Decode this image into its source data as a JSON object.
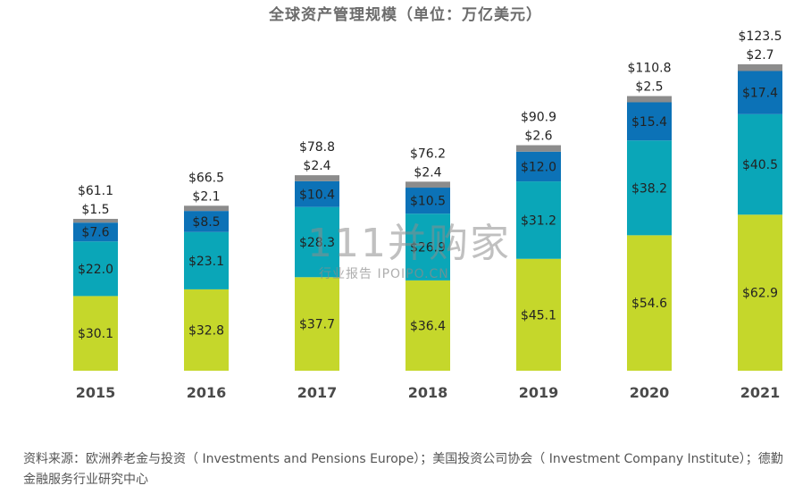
{
  "chart_data": {
    "type": "bar",
    "stacked": true,
    "title": "全球资产管理规模（单位：万亿美元）",
    "categories": [
      "2015",
      "2016",
      "2017",
      "2018",
      "2019",
      "2020",
      "2021"
    ],
    "totals": [
      61.1,
      66.5,
      78.8,
      76.2,
      90.9,
      110.8,
      123.5
    ],
    "value_prefix": "$",
    "series": [
      {
        "color": "#c5d72b",
        "values": [
          30.1,
          32.8,
          37.7,
          36.4,
          45.1,
          54.6,
          62.9
        ]
      },
      {
        "color": "#0aa6b8",
        "values": [
          22.0,
          23.1,
          28.3,
          26.9,
          31.2,
          38.2,
          40.5
        ]
      },
      {
        "color": "#0c72b7",
        "values": [
          7.6,
          8.5,
          10.4,
          10.5,
          12.0,
          15.4,
          17.4
        ]
      },
      {
        "color": "#8c8c8c",
        "values": [
          1.5,
          2.1,
          2.4,
          2.4,
          2.6,
          2.5,
          2.7
        ]
      }
    ],
    "ylim": [
      0,
      123.5
    ],
    "grid": false,
    "legend": "none"
  },
  "watermark": {
    "main": "111并购家",
    "sub": "行业报告 IPOIPO.CN"
  },
  "source_note": "资料来源：欧洲养老金与投资（ Investments and Pensions Europe）；美国投资公司协会（ Investment Company Institute）；德勤金融服务行业研究中心"
}
